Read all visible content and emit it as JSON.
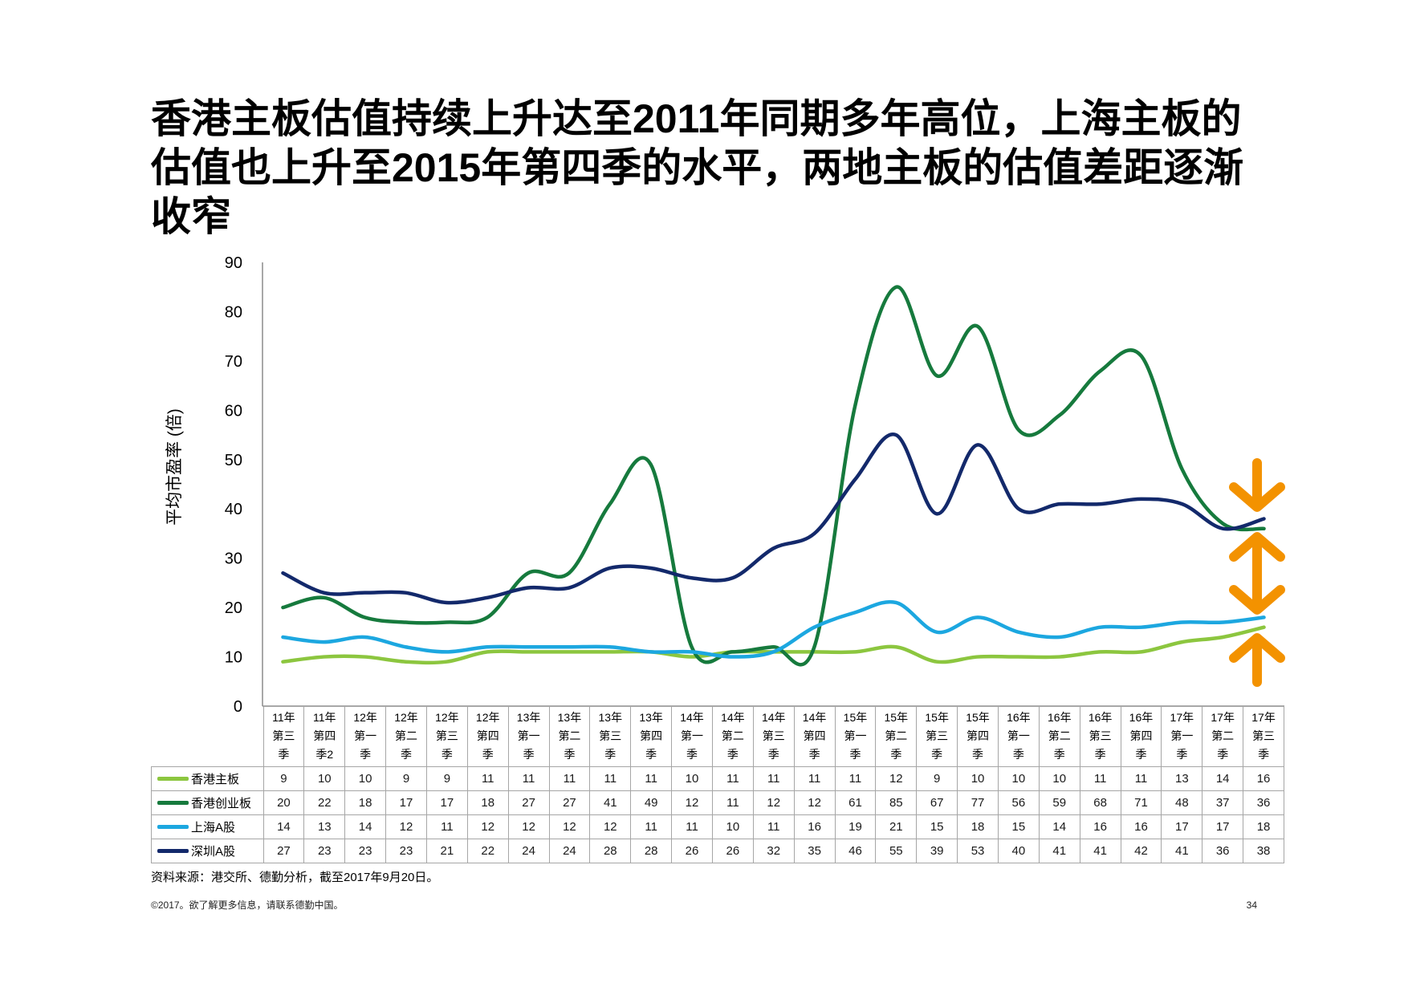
{
  "title_lines": [
    "香港主板估值持续上升达至2011年同期多年高位，上海主板的",
    "估值也上升至2015年第四季的水平，两地主板的估值差距逐渐",
    "收窄"
  ],
  "chart_data": {
    "type": "line",
    "smooth": true,
    "ylabel": "平均市盈率 (倍)",
    "ylim": [
      0,
      90
    ],
    "yticks": [
      0,
      10,
      20,
      30,
      40,
      50,
      60,
      70,
      80,
      90
    ],
    "grid": false,
    "legend": "bottom-left",
    "categories": [
      "11年第三季",
      "11年第四季2",
      "12年第一季",
      "12年第二季",
      "12年第三季",
      "12年第四季",
      "13年第一季",
      "13年第二季",
      "13年第三季",
      "13年第四季",
      "14年第一季",
      "14年第二季",
      "14年第三季",
      "14年第四季",
      "15年第一季",
      "15年第二季",
      "15年第三季",
      "15年第四季",
      "16年第一季",
      "16年第二季",
      "16年第三季",
      "16年第四季",
      "17年第一季",
      "17年第二季",
      "17年第三季"
    ],
    "series": [
      {
        "name": "香港主板",
        "color": "#8CC63F",
        "values": [
          9,
          10,
          10,
          9,
          9,
          11,
          11,
          11,
          11,
          11,
          10,
          11,
          11,
          11,
          11,
          12,
          9,
          10,
          10,
          10,
          11,
          11,
          13,
          14,
          16
        ]
      },
      {
        "name": "香港创业板",
        "color": "#167A3D",
        "values": [
          20,
          22,
          18,
          17,
          17,
          18,
          27,
          27,
          41,
          49,
          12,
          11,
          12,
          12,
          61,
          85,
          67,
          77,
          56,
          59,
          68,
          71,
          48,
          37,
          36
        ]
      },
      {
        "name": "上海A股",
        "color": "#1CA7E0",
        "values": [
          14,
          13,
          14,
          12,
          11,
          12,
          12,
          12,
          12,
          11,
          11,
          10,
          11,
          16,
          19,
          21,
          15,
          18,
          15,
          14,
          16,
          16,
          17,
          17,
          18
        ]
      },
      {
        "name": "深圳A股",
        "color": "#13296B",
        "values": [
          27,
          23,
          23,
          23,
          21,
          22,
          24,
          24,
          28,
          28,
          26,
          26,
          32,
          35,
          46,
          55,
          39,
          53,
          40,
          41,
          41,
          42,
          41,
          36,
          38
        ]
      }
    ]
  },
  "colors": {
    "trend_arrows": "#F39200"
  },
  "source_note": "资料来源：港交所、德勤分析，截至2017年9月20日。",
  "footer": {
    "copyright": "©2017。欲了解更多信息，请联系德勤中国。",
    "page_number": "34"
  }
}
